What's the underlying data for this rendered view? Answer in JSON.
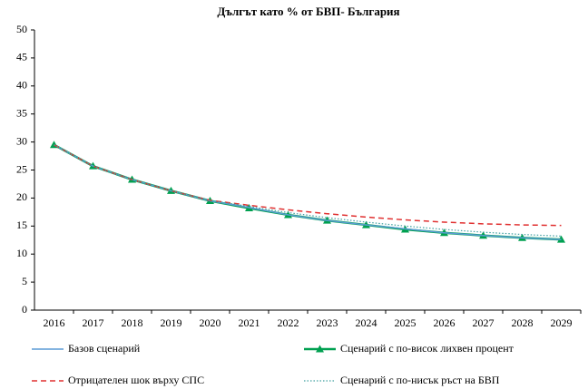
{
  "chart_data": {
    "type": "line",
    "title": "Дългът като % от БВП- България",
    "categories": [
      "2016",
      "2017",
      "2018",
      "2019",
      "2020",
      "2021",
      "2022",
      "2023",
      "2024",
      "2025",
      "2026",
      "2027",
      "2028",
      "2029"
    ],
    "ylim": [
      0,
      50
    ],
    "yticks": [
      0,
      5,
      10,
      15,
      20,
      25,
      30,
      35,
      40,
      45,
      50
    ],
    "series": [
      {
        "name": "Базов сценарий",
        "color": "#5b9bd5",
        "style": "solid",
        "values": [
          29.5,
          25.7,
          23.3,
          21.3,
          19.5,
          18.3,
          17.0,
          16.0,
          15.2,
          14.5,
          13.8,
          13.3,
          12.9,
          12.6
        ]
      },
      {
        "name": "Сценарий с по-висок лихвен процент",
        "color": "#00a050",
        "style": "solid",
        "marker": "triangle",
        "values": [
          29.5,
          25.7,
          23.3,
          21.3,
          19.5,
          18.2,
          17.0,
          16.0,
          15.2,
          14.4,
          13.8,
          13.3,
          12.9,
          12.6
        ]
      },
      {
        "name": "Отрицателен шок върху СПС",
        "color": "#e03030",
        "style": "dashed",
        "values": [
          29.5,
          25.7,
          23.3,
          21.3,
          19.6,
          18.7,
          17.9,
          17.2,
          16.6,
          16.1,
          15.7,
          15.4,
          15.2,
          15.1
        ]
      },
      {
        "name": "Сценарий с по-нисък ръст на БВП",
        "color": "#40a0a0",
        "style": "dotted",
        "values": [
          29.5,
          25.7,
          23.3,
          21.3,
          19.6,
          18.5,
          17.4,
          16.5,
          15.7,
          15.0,
          14.4,
          13.9,
          13.5,
          13.2
        ]
      }
    ]
  }
}
